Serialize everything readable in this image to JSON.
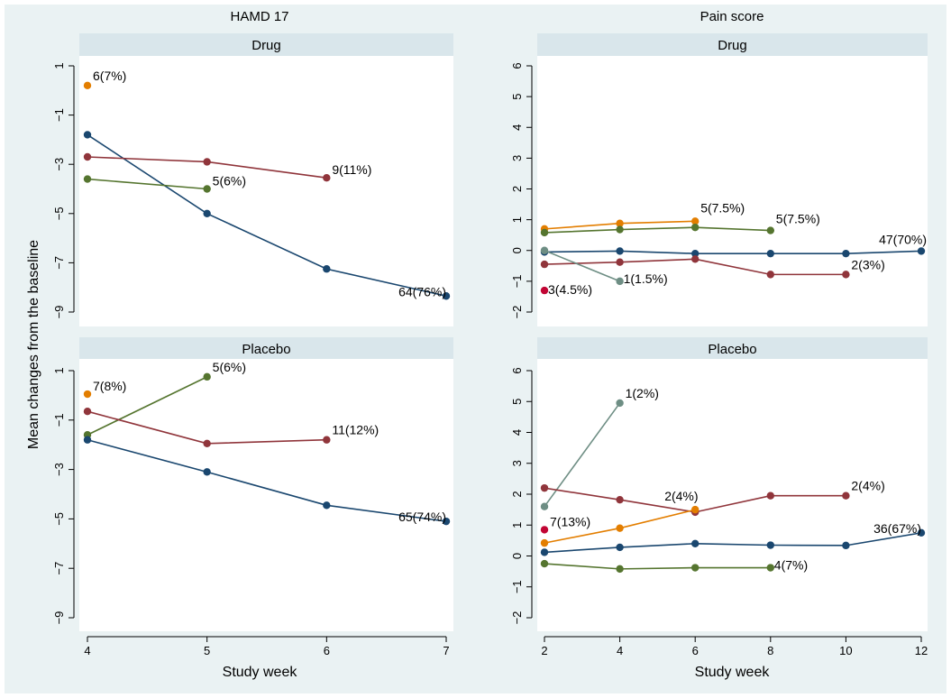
{
  "columns": [
    "HAMD 17",
    "Pain score"
  ],
  "ylabel": "Mean changes from the baseline",
  "xlabel": "Study week",
  "colors": {
    "navy": "#1a476f",
    "maroon": "#90353b",
    "green": "#55752f",
    "orange": "#e37e00",
    "teal": "#6e8e84",
    "crimson": "#c10534"
  },
  "chart_data": [
    {
      "type": "line",
      "column": "HAMD 17",
      "panel": "Drug",
      "xlim": [
        4,
        7
      ],
      "ylim": [
        -9,
        1
      ],
      "xticks": [
        4,
        5,
        6,
        7
      ],
      "yticks": [
        1,
        -1,
        -3,
        -5,
        -7,
        -9
      ],
      "series": [
        {
          "color": "orange",
          "x": [
            4
          ],
          "y": [
            0.2
          ],
          "label": "6(7%)"
        },
        {
          "color": "navy",
          "x": [
            4,
            5,
            6,
            7
          ],
          "y": [
            -1.8,
            -5.0,
            -7.25,
            -8.35
          ],
          "label": "64(76%)"
        },
        {
          "color": "maroon",
          "x": [
            4,
            5,
            6
          ],
          "y": [
            -2.7,
            -2.9,
            -3.55
          ],
          "label": "9(11%)"
        },
        {
          "color": "green",
          "x": [
            4,
            5
          ],
          "y": [
            -3.6,
            -4.0
          ],
          "label": "5(6%)"
        }
      ]
    },
    {
      "type": "line",
      "column": "Pain score",
      "panel": "Drug",
      "xlim": [
        2,
        12
      ],
      "ylim": [
        -2,
        6
      ],
      "xticks": [
        2,
        4,
        6,
        8,
        10,
        12
      ],
      "yticks": [
        6,
        5,
        4,
        3,
        2,
        1,
        0,
        -1,
        -2
      ],
      "series": [
        {
          "color": "orange",
          "x": [
            2,
            4,
            6
          ],
          "y": [
            0.7,
            0.88,
            0.95
          ],
          "label": "5(7.5%)"
        },
        {
          "color": "green",
          "x": [
            2,
            4,
            6,
            8
          ],
          "y": [
            0.58,
            0.68,
            0.75,
            0.65
          ],
          "label": "5(7.5%)"
        },
        {
          "color": "navy",
          "x": [
            2,
            4,
            6,
            8,
            10,
            12
          ],
          "y": [
            -0.05,
            -0.02,
            -0.1,
            -0.1,
            -0.1,
            -0.02
          ],
          "label": "47(70%)"
        },
        {
          "color": "maroon",
          "x": [
            2,
            4,
            6,
            8,
            10
          ],
          "y": [
            -0.45,
            -0.38,
            -0.28,
            -0.78,
            -0.78
          ],
          "label": "2(3%)"
        },
        {
          "color": "teal",
          "x": [
            2,
            4
          ],
          "y": [
            0.0,
            -1.0
          ],
          "label": "1(1.5%)"
        },
        {
          "color": "crimson",
          "x": [
            2
          ],
          "y": [
            -1.3
          ],
          "label": "3(4.5%)"
        }
      ]
    },
    {
      "type": "line",
      "column": "HAMD 17",
      "panel": "Placebo",
      "xlim": [
        4,
        7
      ],
      "ylim": [
        -9,
        1
      ],
      "xticks": [
        4,
        5,
        6,
        7
      ],
      "yticks": [
        1,
        -1,
        -3,
        -5,
        -7,
        -9
      ],
      "series": [
        {
          "color": "orange",
          "x": [
            4
          ],
          "y": [
            0.05
          ],
          "label": "7(8%)"
        },
        {
          "color": "green",
          "x": [
            4,
            5
          ],
          "y": [
            -1.6,
            0.75
          ],
          "label": "5(6%)"
        },
        {
          "color": "maroon",
          "x": [
            4,
            5,
            6
          ],
          "y": [
            -0.65,
            -1.95,
            -1.8
          ],
          "label": "11(12%)"
        },
        {
          "color": "navy",
          "x": [
            4,
            5,
            6,
            7
          ],
          "y": [
            -1.8,
            -3.1,
            -4.45,
            -5.1
          ],
          "label": "65(74%)"
        }
      ]
    },
    {
      "type": "line",
      "column": "Pain score",
      "panel": "Placebo",
      "xlim": [
        2,
        12
      ],
      "ylim": [
        -2,
        6
      ],
      "xticks": [
        2,
        4,
        6,
        8,
        10,
        12
      ],
      "yticks": [
        6,
        5,
        4,
        3,
        2,
        1,
        0,
        -1,
        -2
      ],
      "series": [
        {
          "color": "teal",
          "x": [
            2,
            4
          ],
          "y": [
            1.6,
            4.95
          ],
          "label": "1(2%)"
        },
        {
          "color": "maroon",
          "x": [
            2,
            4,
            6,
            8,
            10
          ],
          "y": [
            2.2,
            1.82,
            1.42,
            1.95,
            1.95
          ],
          "label": "2(4%)"
        },
        {
          "color": "orange",
          "x": [
            2,
            4,
            6
          ],
          "y": [
            0.42,
            0.9,
            1.5
          ],
          "label": "2(4%)"
        },
        {
          "color": "crimson",
          "x": [
            2
          ],
          "y": [
            0.85
          ],
          "label": "7(13%)"
        },
        {
          "color": "navy",
          "x": [
            2,
            4,
            6,
            8,
            10,
            12
          ],
          "y": [
            0.12,
            0.28,
            0.4,
            0.35,
            0.34,
            0.75
          ],
          "label": "36(67%)"
        },
        {
          "color": "green",
          "x": [
            2,
            4,
            6,
            8
          ],
          "y": [
            -0.25,
            -0.42,
            -0.38,
            -0.38
          ],
          "label": "4(7%)"
        }
      ]
    }
  ]
}
